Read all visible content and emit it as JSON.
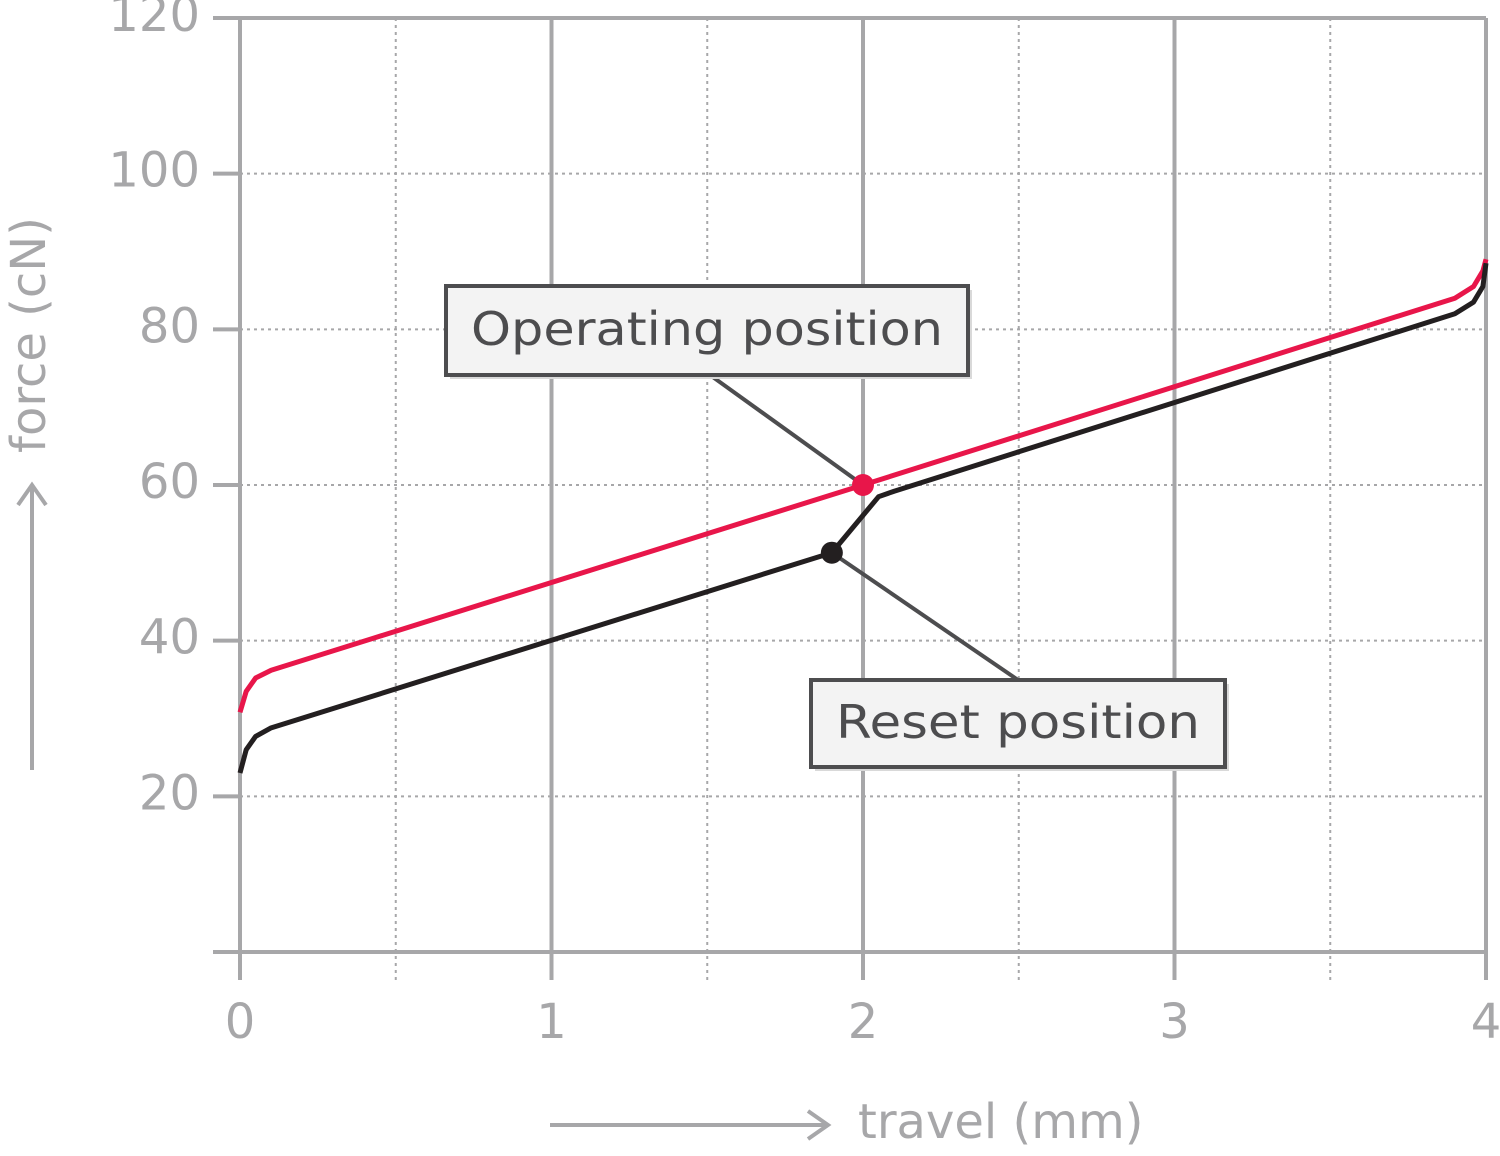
{
  "chart_data": {
    "type": "line",
    "xlabel": "travel (mm)",
    "ylabel": "force (cN)",
    "xlim": [
      0,
      4
    ],
    "ylim": [
      0,
      120
    ],
    "xticks": [
      0,
      1,
      2,
      3,
      4
    ],
    "x_minor_ticks": [
      0.5,
      1.5,
      2.5,
      3.5
    ],
    "yticks": [
      20,
      40,
      60,
      80,
      100,
      120
    ],
    "grid": true,
    "series": [
      {
        "color": "#e8164a",
        "x": [
          0,
          0.02,
          0.05,
          0.1,
          2,
          3.9,
          3.96,
          3.99,
          4
        ],
        "y": [
          30.8,
          33.5,
          35.2,
          36.2,
          60,
          84,
          85.5,
          87.5,
          89
        ]
      },
      {
        "color": "#231f20",
        "x": [
          0,
          0.02,
          0.05,
          0.1,
          1.9,
          2.05,
          2.1,
          3.9,
          3.96,
          3.99,
          4
        ],
        "y": [
          23,
          26,
          27.7,
          28.8,
          51.3,
          58.5,
          59.2,
          82,
          83.5,
          85.5,
          88.5
        ]
      }
    ],
    "annotations": [
      {
        "text": "Operating position",
        "x": 2,
        "y": 60,
        "color": "#e8164a"
      },
      {
        "text": "Reset position",
        "x": 1.9,
        "y": 51.3,
        "color": "#231f20"
      }
    ]
  }
}
